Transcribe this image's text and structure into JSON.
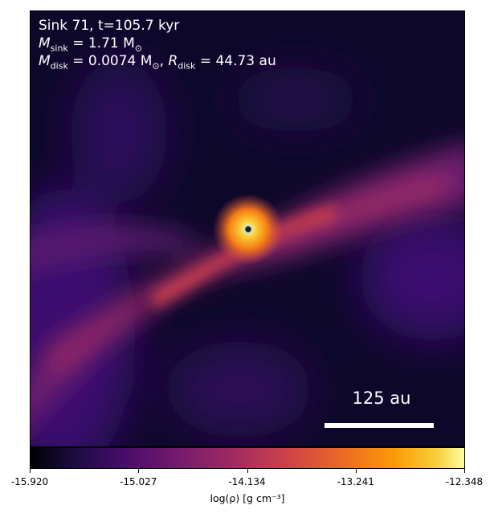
{
  "chart_data": {
    "type": "heatmap",
    "colormap": "inferno",
    "title_lines": [
      "Sink 71, t=105.7 kyr"
    ],
    "sink_mass_label": "M",
    "sink_mass_sub": "sink",
    "sink_mass_value": "= 1.71 M",
    "sink_mass_unit_sub": "⊙",
    "disk_mass_label": "M",
    "disk_mass_sub": "disk",
    "disk_mass_value": "= 0.0074 M",
    "disk_mass_unit_sub": "⊙",
    "disk_radius_label": "R",
    "disk_radius_sub": "disk",
    "disk_radius_value": "= 44.73 au",
    "scale_bar_label": "125 au",
    "colorbar": {
      "label": "log(ρ) [g cm⁻³]",
      "min": -15.92,
      "max": -12.348,
      "ticks": [
        "-15.920",
        "-15.027",
        "-14.134",
        "-13.241",
        "-12.348"
      ],
      "tick_values": [
        -15.92,
        -15.027,
        -14.134,
        -13.241,
        -12.348
      ]
    }
  }
}
